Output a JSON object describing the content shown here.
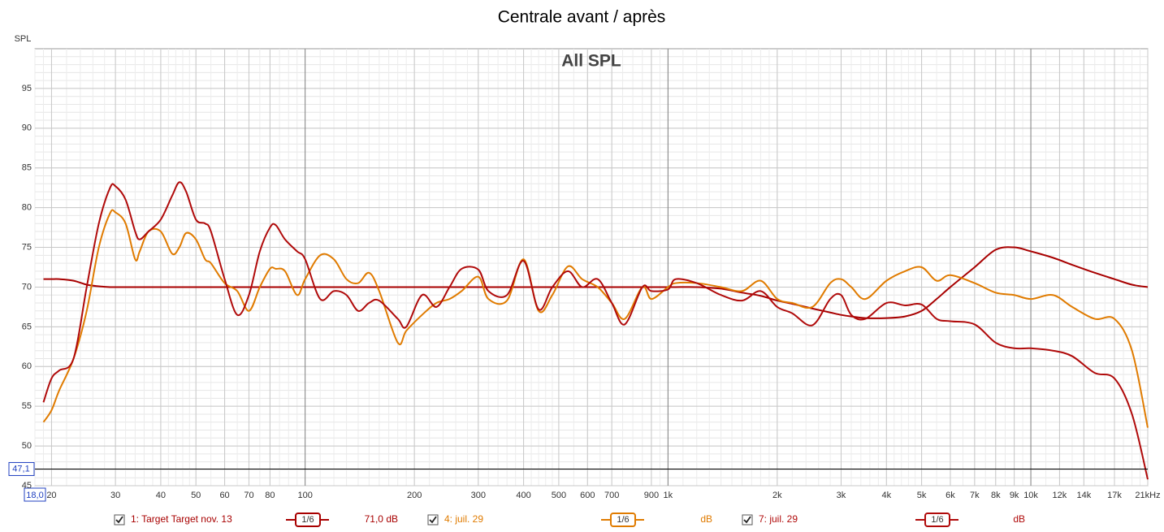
{
  "chart_data": {
    "type": "line",
    "title": "Centrale avant / après",
    "plot_label": "All SPL",
    "ylabel": "SPL",
    "log_x": true,
    "grid": true,
    "minor_grid": true,
    "xlim": [
      18,
      21000
    ],
    "ylim": [
      45,
      100
    ],
    "yticks": [
      45,
      50,
      55,
      60,
      65,
      70,
      75,
      80,
      85,
      90,
      95
    ],
    "xticks": [
      20,
      30,
      40,
      50,
      60,
      70,
      80,
      100,
      200,
      300,
      400,
      500,
      600,
      700,
      900,
      {
        "value": 1000,
        "label": "1k"
      },
      {
        "value": 2000,
        "label": "2k"
      },
      {
        "value": 3000,
        "label": "3k"
      },
      {
        "value": 4000,
        "label": "4k"
      },
      {
        "value": 5000,
        "label": "5k"
      },
      {
        "value": 6000,
        "label": "6k"
      },
      {
        "value": 7000,
        "label": "7k"
      },
      {
        "value": 8000,
        "label": "8k"
      },
      {
        "value": 9000,
        "label": "9k"
      },
      {
        "value": 10000,
        "label": "10k"
      },
      {
        "value": 12000,
        "label": "12k"
      },
      {
        "value": 14000,
        "label": "14k"
      },
      {
        "value": 17000,
        "label": "17k"
      },
      {
        "value": 21000,
        "label": "21kHz"
      }
    ],
    "x_cursor": {
      "value": 18,
      "label": "18,0"
    },
    "y_cursor": {
      "value": 47.1,
      "label": "47,1"
    },
    "x": [
      19,
      20,
      21,
      23,
      25,
      27,
      29,
      30,
      32,
      34,
      35,
      37,
      40,
      43,
      45,
      47,
      50,
      53,
      55,
      60,
      65,
      70,
      75,
      80,
      83,
      88,
      95,
      100,
      110,
      120,
      130,
      140,
      150,
      160,
      180,
      190,
      210,
      230,
      250,
      270,
      300,
      320,
      360,
      400,
      440,
      480,
      530,
      580,
      640,
      700,
      760,
      850,
      900,
      1000,
      1050,
      1200,
      1400,
      1600,
      1800,
      2000,
      2200,
      2500,
      2800,
      3000,
      3200,
      3500,
      4000,
      4500,
      5000,
      5500,
      6000,
      7000,
      8000,
      9000,
      10000,
      11500,
      13000,
      15000,
      17000,
      19000,
      21000
    ],
    "series": [
      {
        "name": "1: Target Target nov. 13",
        "color": "#a80000",
        "smoothing": "1/6",
        "readout": "71,0 dB",
        "checked": true,
        "values": [
          71,
          71,
          71,
          70.8,
          70.3,
          70.1,
          70,
          70,
          70,
          70,
          70,
          70,
          70,
          70,
          70,
          70,
          70,
          70,
          70,
          70,
          70,
          70,
          70,
          70,
          70,
          70,
          70,
          70,
          70,
          70,
          70,
          70,
          70,
          70,
          70,
          70,
          70,
          70,
          70,
          70,
          70,
          70,
          70,
          70,
          70,
          70,
          70,
          70,
          70,
          70,
          70,
          70,
          70,
          70,
          70,
          70,
          69.8,
          69.3,
          68.9,
          68.3,
          67.9,
          67.3,
          66.8,
          66.5,
          66.3,
          66.1,
          66.1,
          66.3,
          67,
          68.5,
          70,
          72.5,
          74.7,
          75,
          74.5,
          73.7,
          72.8,
          71.8,
          71,
          70.3,
          70
        ]
      },
      {
        "name": "4: juil. 29",
        "color": "#e07b00",
        "smoothing": "1/6",
        "readout": "dB",
        "checked": true,
        "values": [
          53,
          54.5,
          57,
          61,
          67,
          75,
          79.3,
          79.4,
          78,
          73.5,
          74.5,
          77,
          77,
          74.2,
          75,
          76.8,
          76,
          73.5,
          73,
          70.5,
          69.5,
          67,
          70,
          72.3,
          72.3,
          72,
          69,
          71,
          74,
          73.5,
          71,
          70.5,
          71.8,
          69.5,
          63,
          64.5,
          66.5,
          68,
          68.5,
          69.5,
          71.3,
          68.5,
          68.3,
          73.5,
          67,
          69,
          72.6,
          71,
          70,
          68,
          66,
          70,
          68.5,
          70,
          70.5,
          70.5,
          70,
          69.5,
          70.8,
          68.5,
          68,
          67.5,
          70.5,
          71,
          70,
          68.5,
          70.8,
          72,
          72.5,
          70.8,
          71.5,
          70.5,
          69.3,
          69,
          68.5,
          69,
          67.5,
          66,
          66,
          62,
          52.3
        ]
      },
      {
        "name": "7: juil. 29",
        "color": "#b00a0a",
        "smoothing": "1/6",
        "readout": "dB",
        "checked": true,
        "values": [
          55.5,
          58.5,
          59.5,
          61,
          70,
          78,
          82.5,
          82.7,
          81,
          77,
          76,
          77,
          78.5,
          81.5,
          83.2,
          82,
          78.5,
          78,
          77,
          71,
          66.5,
          69,
          74.5,
          77.5,
          77.8,
          76,
          74.5,
          73.5,
          68.5,
          69.5,
          69,
          67,
          68,
          68.3,
          66,
          65,
          69,
          67.5,
          70,
          72.3,
          72.2,
          69.5,
          69,
          73.3,
          67.2,
          70,
          72,
          70,
          71,
          68,
          65.3,
          70,
          69.5,
          69.7,
          71,
          70.5,
          69,
          68.3,
          69.5,
          67.5,
          66.7,
          65.2,
          68.5,
          69,
          66.5,
          66,
          68,
          67.7,
          67.8,
          66,
          65.7,
          65.3,
          63,
          62.3,
          62.3,
          62,
          61.3,
          59.2,
          58.5,
          54,
          45.8
        ]
      }
    ]
  }
}
